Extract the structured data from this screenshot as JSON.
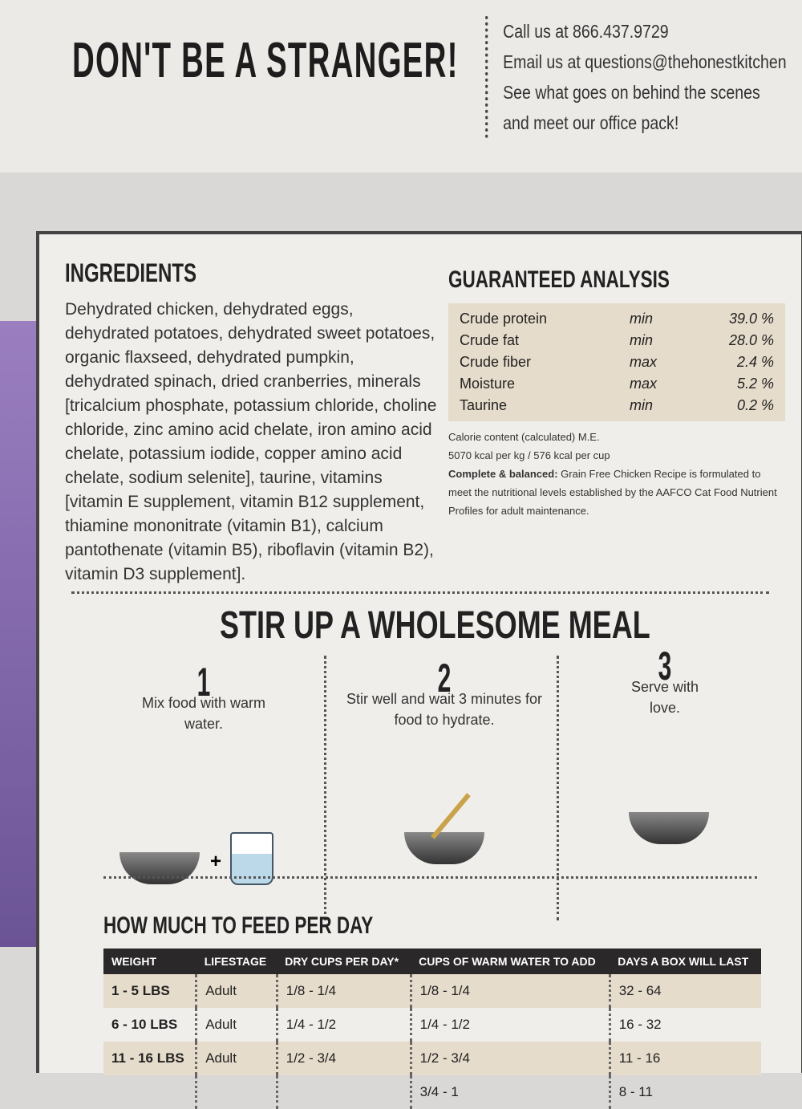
{
  "header": {
    "headline": "DON'T BE A STRANGER!",
    "contact": [
      "Call us at 866.437.9729",
      "Email us at questions@thehonestkitchen",
      "See what goes on behind the scenes",
      "and meet our office pack!"
    ]
  },
  "ingredients": {
    "title": "INGREDIENTS",
    "text": "Dehydrated chicken, dehydrated eggs, dehydrated potatoes, dehydrated sweet potatoes, organic flaxseed, dehydrated pumpkin, dehydrated spinach, dried cranberries, minerals [tricalcium phosphate, potassium chloride, choline chloride, zinc amino acid chelate, iron amino acid chelate, potassium iodide, copper amino acid chelate, sodium selenite], taurine, vitamins [vitamin E supplement, vitamin B12 supplement, thiamine mononitrate (vitamin B1), calcium pantothenate (vitamin B5), riboflavin (vitamin B2), vitamin D3 supplement]."
  },
  "analysis": {
    "title": "GUARANTEED ANALYSIS",
    "rows": [
      {
        "name": "Crude protein",
        "qual": "min",
        "value": "39.0 %"
      },
      {
        "name": "Crude fat",
        "qual": "min",
        "value": "28.0 %"
      },
      {
        "name": "Crude fiber",
        "qual": "max",
        "value": "2.4 %"
      },
      {
        "name": "Moisture",
        "qual": "max",
        "value": "5.2 %"
      },
      {
        "name": "Taurine",
        "qual": "min",
        "value": "0.2 %"
      }
    ],
    "calorie_label": "Calorie content (calculated) M.E.",
    "calorie_value": "5070 kcal per kg / 576 kcal per cup",
    "balanced_label": "Complete & balanced:",
    "balanced_text": "Grain Free Chicken Recipe is formulated to meet the nutritional levels established by the AAFCO Cat Food Nutrient Profiles for adult maintenance."
  },
  "meal": {
    "title": "STIR UP A WHOLESOME MEAL",
    "steps": [
      {
        "num": "1",
        "text": "Mix food with warm water."
      },
      {
        "num": "2",
        "text": "Stir well and wait 3 minutes for food to hydrate."
      },
      {
        "num": "3",
        "text": "Serve with love."
      }
    ],
    "plus": "+"
  },
  "feeding": {
    "title": "HOW MUCH TO FEED PER DAY",
    "headers": [
      "WEIGHT",
      "LIFESTAGE",
      "DRY CUPS PER DAY*",
      "CUPS OF WARM WATER TO ADD",
      "DAYS A BOX WILL LAST"
    ],
    "rows": [
      [
        "1 - 5 LBS",
        "Adult",
        "1/8 - 1/4",
        "1/8 - 1/4",
        "32 - 64"
      ],
      [
        "6 - 10 LBS",
        "Adult",
        "1/4 - 1/2",
        "1/4 - 1/2",
        "16 - 32"
      ],
      [
        "11 - 16 LBS",
        "Adult",
        "1/2 - 3/4",
        "1/2 - 3/4",
        "11 - 16"
      ],
      [
        "",
        "",
        "",
        "3/4 - 1",
        "8 - 11"
      ]
    ]
  },
  "colors": {
    "panel": "#f0eeea",
    "tan": "#e6dccb",
    "dark": "#2a2828",
    "purple": "#8c72b8"
  }
}
